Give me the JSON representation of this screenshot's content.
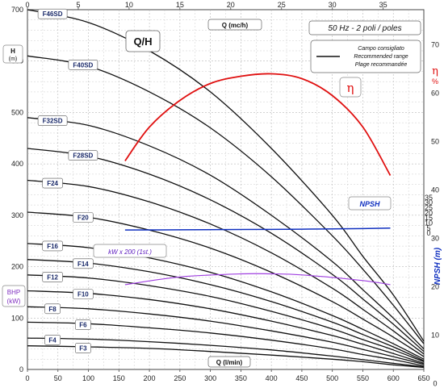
{
  "chart_data": {
    "type": "line",
    "title": "Q/H",
    "subtitle": "50 Hz - 2 poli / poles",
    "x_top": {
      "label": "Q (mc/h)",
      "range": [
        0,
        39
      ],
      "ticks": [
        0,
        5,
        10,
        15,
        20,
        25,
        30,
        35
      ]
    },
    "x_bottom": {
      "label": "Q (l/min)",
      "range": [
        0,
        650
      ],
      "ticks": [
        0,
        50,
        100,
        150,
        200,
        250,
        300,
        350,
        400,
        450,
        500,
        550,
        600,
        650
      ]
    },
    "y_left": {
      "label": "H",
      "unit": "(m)",
      "range": [
        0,
        700
      ],
      "ticks": [
        0,
        100,
        200,
        300,
        400,
        500,
        600,
        700
      ]
    },
    "y_right": {
      "label": "η",
      "unit": "%",
      "ticks": [
        0,
        10,
        20,
        30,
        40,
        50,
        60,
        70
      ]
    },
    "y_npsh": {
      "label": "NPSH (m)",
      "ticks": [
        0,
        5,
        10,
        15,
        20,
        25,
        30,
        35
      ]
    },
    "legend": {
      "title": "Campo consigliato",
      "line2": "Recommended range",
      "line3": "Plage recommandée",
      "placement": "top-right"
    },
    "eta_label": "η",
    "npsh_label": "NPSH",
    "bhp_label": "BHP",
    "bhp_unit": "(kW)",
    "bhp_scale_label": "kW x 200 (1st.)",
    "series": [
      {
        "name": "F46SD",
        "q": [
          0,
          100,
          200,
          300,
          400,
          500,
          550,
          600,
          650
        ],
        "h": [
          700,
          675,
          620,
          540,
          430,
          300,
          220,
          145,
          55
        ]
      },
      {
        "name": "F40SD",
        "q": [
          0,
          100,
          200,
          300,
          400,
          500,
          550,
          600,
          650
        ],
        "h": [
          610,
          590,
          540,
          470,
          375,
          260,
          195,
          125,
          50
        ]
      },
      {
        "name": "F32SD",
        "q": [
          0,
          100,
          200,
          300,
          400,
          500,
          550,
          600,
          650
        ],
        "h": [
          490,
          475,
          435,
          378,
          300,
          210,
          155,
          100,
          40
        ]
      },
      {
        "name": "F28SD",
        "q": [
          0,
          100,
          200,
          300,
          400,
          500,
          550,
          600,
          650
        ],
        "h": [
          430,
          415,
          380,
          330,
          265,
          185,
          137,
          88,
          35
        ]
      },
      {
        "name": "F24",
        "q": [
          0,
          100,
          200,
          300,
          400,
          500,
          550,
          600,
          650
        ],
        "h": [
          368,
          356,
          326,
          283,
          227,
          158,
          117,
          75,
          30
        ]
      },
      {
        "name": "F20",
        "q": [
          0,
          100,
          200,
          300,
          400,
          500,
          550,
          600,
          650
        ],
        "h": [
          306,
          296,
          271,
          236,
          189,
          132,
          98,
          63,
          25
        ]
      },
      {
        "name": "F16",
        "q": [
          0,
          100,
          200,
          300,
          400,
          500,
          550,
          600,
          650
        ],
        "h": [
          245,
          237,
          217,
          189,
          151,
          105,
          78,
          50,
          20
        ]
      },
      {
        "name": "F14",
        "q": [
          0,
          100,
          200,
          300,
          400,
          500,
          550,
          600,
          650
        ],
        "h": [
          214,
          207,
          190,
          165,
          132,
          92,
          68,
          44,
          17
        ]
      },
      {
        "name": "F12",
        "q": [
          0,
          100,
          200,
          300,
          400,
          500,
          550,
          600,
          650
        ],
        "h": [
          184,
          178,
          163,
          142,
          113,
          79,
          58,
          38,
          15
        ]
      },
      {
        "name": "F10",
        "q": [
          0,
          100,
          200,
          300,
          400,
          500,
          550,
          600,
          650
        ],
        "h": [
          153,
          148,
          136,
          118,
          94,
          66,
          49,
          31,
          12
        ]
      },
      {
        "name": "F8",
        "q": [
          0,
          100,
          200,
          300,
          400,
          500,
          550,
          600,
          650
        ],
        "h": [
          122,
          118,
          108,
          94,
          75,
          53,
          39,
          25,
          10
        ]
      },
      {
        "name": "F6",
        "q": [
          0,
          100,
          200,
          300,
          400,
          500,
          550,
          600,
          650
        ],
        "h": [
          92,
          89,
          81,
          71,
          57,
          40,
          29,
          19,
          7
        ]
      },
      {
        "name": "F4",
        "q": [
          0,
          100,
          200,
          300,
          400,
          500,
          550,
          600,
          650
        ],
        "h": [
          61,
          59,
          54,
          47,
          38,
          26,
          19,
          12,
          5
        ]
      },
      {
        "name": "F3",
        "q": [
          0,
          100,
          200,
          300,
          400,
          500,
          550,
          600,
          650
        ],
        "h": [
          46,
          44,
          41,
          35,
          28,
          20,
          15,
          9,
          4
        ]
      }
    ],
    "efficiency": {
      "q": [
        160,
        200,
        250,
        300,
        350,
        400,
        450,
        500,
        550,
        595
      ],
      "eta": [
        46,
        53,
        58.5,
        62,
        63.5,
        64,
        63,
        59.5,
        53,
        43
      ]
    },
    "npsh": {
      "q": [
        160,
        250,
        350,
        450,
        550,
        595
      ],
      "npsh": [
        3.2,
        3.4,
        3.7,
        4.0,
        4.6,
        5.0
      ]
    },
    "bhp": {
      "q": [
        160,
        250,
        350,
        400,
        450,
        550,
        595
      ],
      "kw_x200": [
        165,
        180,
        186,
        186,
        184,
        173,
        165
      ]
    },
    "colors": {
      "curves": "#111111",
      "efficiency": "#e01010",
      "npsh": "#1030c0",
      "bhp": "#a040e0",
      "grid": "#b8b8b8",
      "labels": "#1a2a6a"
    }
  }
}
